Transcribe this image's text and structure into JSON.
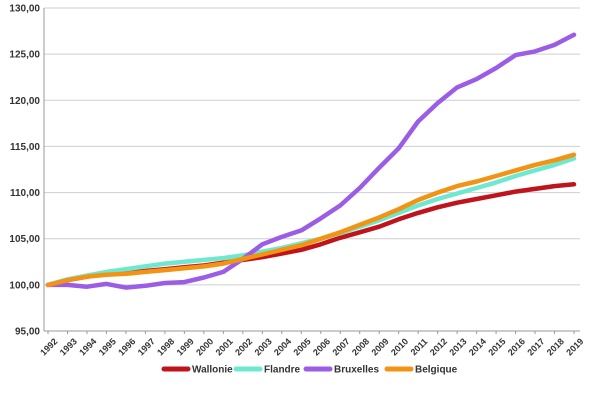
{
  "chart_data": {
    "type": "line",
    "title": "",
    "xlabel": "",
    "ylabel": "",
    "x": [
      "1992",
      "1993",
      "1994",
      "1995",
      "1996",
      "1997",
      "1998",
      "1999",
      "2000",
      "2001",
      "2002",
      "2003",
      "2004",
      "2005",
      "2006",
      "2007",
      "2008",
      "2009",
      "2010",
      "2011",
      "2012",
      "2013",
      "2014",
      "2015",
      "2016",
      "2017",
      "2018",
      "2019"
    ],
    "ylim": [
      95,
      130
    ],
    "yticks": [
      "95,00",
      "100,00",
      "105,00",
      "110,00",
      "115,00",
      "120,00",
      "125,00",
      "130,00"
    ],
    "ytick_values": [
      95,
      100,
      105,
      110,
      115,
      120,
      125,
      130
    ],
    "grid": "horizontal",
    "legend_position": "bottom",
    "series": [
      {
        "name": "Wallonie",
        "color": "#c0141c",
        "values": [
          100.0,
          100.5,
          100.9,
          101.2,
          101.3,
          101.5,
          101.7,
          101.9,
          102.1,
          102.4,
          102.7,
          103.0,
          103.4,
          103.8,
          104.4,
          105.1,
          105.7,
          106.3,
          107.1,
          107.8,
          108.4,
          108.9,
          109.3,
          109.7,
          110.1,
          110.4,
          110.7,
          110.9
        ]
      },
      {
        "name": "Flandre",
        "color": "#6ee8cf",
        "values": [
          100.0,
          100.6,
          101.0,
          101.4,
          101.7,
          102.0,
          102.3,
          102.5,
          102.7,
          102.9,
          103.2,
          103.6,
          104.0,
          104.5,
          105.0,
          105.6,
          106.3,
          107.0,
          107.8,
          108.6,
          109.3,
          109.9,
          110.5,
          111.1,
          111.8,
          112.4,
          113.0,
          113.7
        ]
      },
      {
        "name": "Bruxelles",
        "color": "#9b5de5",
        "values": [
          100.0,
          100.0,
          99.8,
          100.1,
          99.7,
          99.9,
          100.2,
          100.3,
          100.8,
          101.4,
          102.8,
          104.4,
          105.2,
          105.9,
          107.2,
          108.6,
          110.5,
          112.7,
          114.8,
          117.7,
          119.7,
          121.4,
          122.3,
          123.5,
          124.9,
          125.3,
          126.0,
          127.1
        ]
      },
      {
        "name": "Belgique",
        "color": "#f39313",
        "values": [
          100.0,
          100.5,
          100.9,
          101.1,
          101.2,
          101.4,
          101.6,
          101.8,
          102.0,
          102.3,
          102.8,
          103.3,
          103.8,
          104.3,
          105.0,
          105.7,
          106.5,
          107.3,
          108.2,
          109.2,
          110.0,
          110.7,
          111.2,
          111.8,
          112.4,
          113.0,
          113.5,
          114.1
        ]
      }
    ]
  }
}
